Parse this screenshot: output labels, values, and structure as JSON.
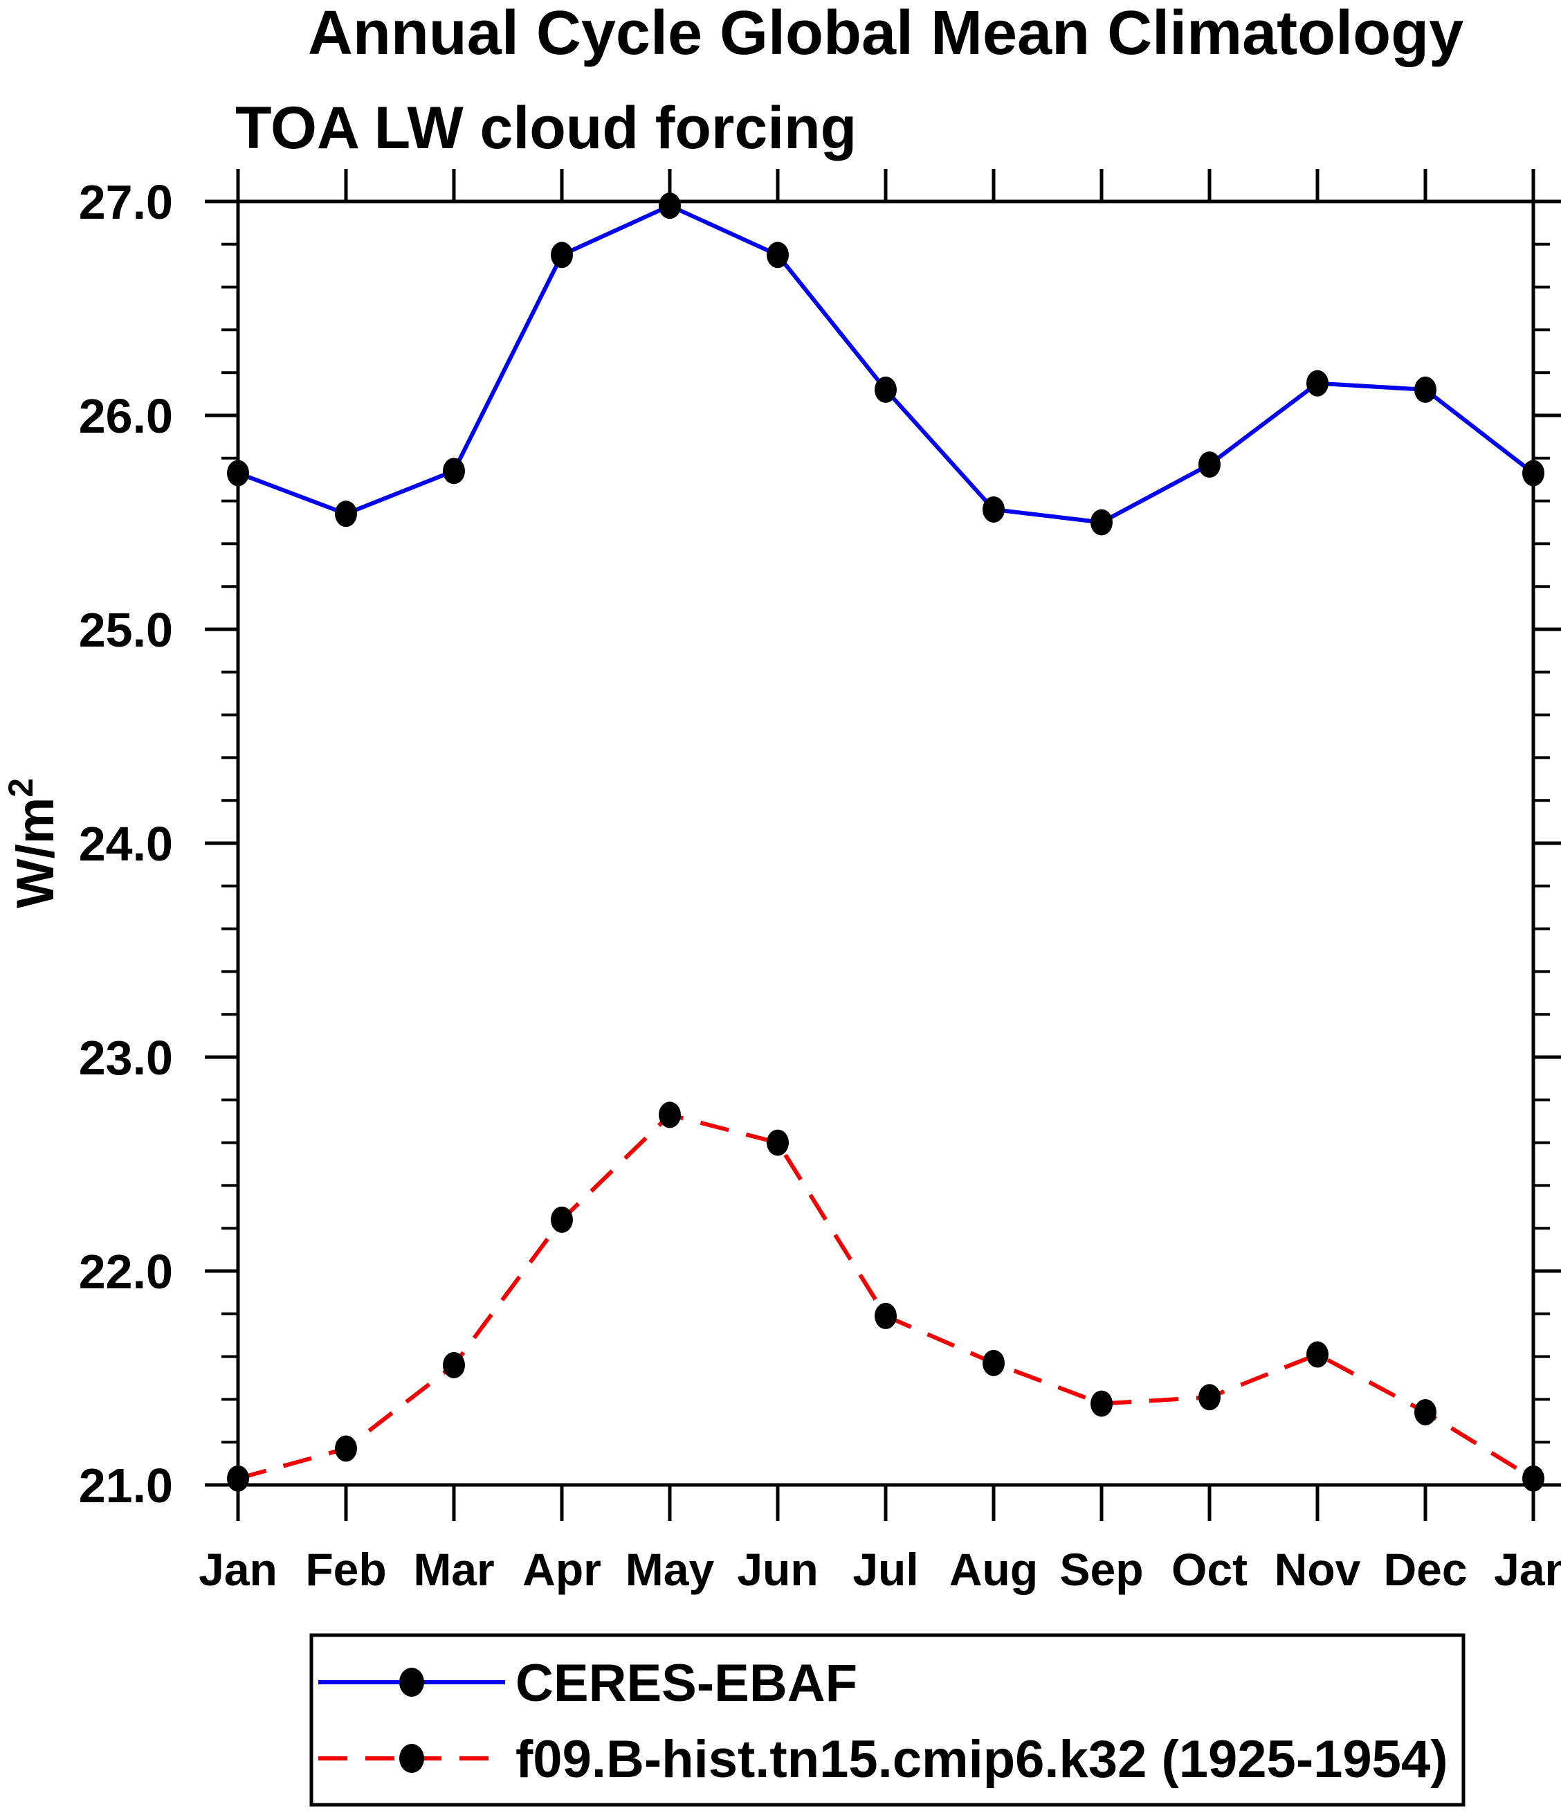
{
  "title": "Annual Cycle Global Mean Climatology",
  "subtitle": "TOA LW cloud forcing",
  "ylabel": {
    "base": "W/m",
    "sup": "2"
  },
  "colors": {
    "ceres_line": "#0000F0",
    "model_line": "#F20000",
    "marker": "#000000",
    "axis": "#000000",
    "background": "#FFFFFF"
  },
  "chart_data": {
    "type": "line",
    "categories": [
      "Jan",
      "Feb",
      "Mar",
      "Apr",
      "May",
      "Jun",
      "Jul",
      "Aug",
      "Sep",
      "Oct",
      "Nov",
      "Dec",
      "Jan"
    ],
    "series": [
      {
        "name": "CERES-EBAF",
        "style": "solid",
        "color": "#0000F0",
        "marker": "filled-circle",
        "values": [
          25.73,
          25.54,
          25.74,
          26.75,
          26.98,
          26.75,
          26.12,
          25.56,
          25.5,
          25.77,
          26.15,
          26.12,
          25.73
        ]
      },
      {
        "name": "f09.B-hist.tn15.cmip6.k32 (1925-1954)",
        "style": "dashed",
        "color": "#F20000",
        "marker": "filled-circle",
        "values": [
          21.03,
          21.17,
          21.56,
          22.24,
          22.73,
          22.6,
          21.79,
          21.57,
          21.38,
          21.41,
          21.61,
          21.34,
          21.03
        ]
      }
    ],
    "xlabel": "",
    "ylabel": "W/m2",
    "ylim": [
      21.0,
      27.0
    ],
    "ytick_major_step": 1.0,
    "ytick_minor_step": 0.2,
    "ytick_labels": [
      "21.0",
      "22.0",
      "23.0",
      "24.0",
      "25.0",
      "26.0",
      "27.0"
    ],
    "grid": false,
    "legend_position": "bottom-left-box"
  }
}
